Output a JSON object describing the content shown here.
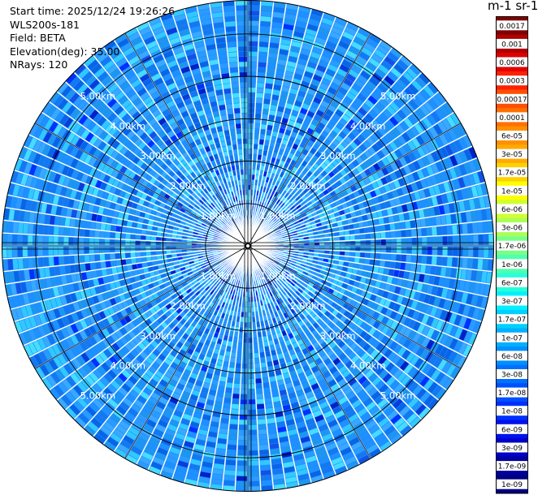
{
  "info": {
    "start_time": "Start time: 2025/12/24 19:26:26",
    "instrument": "WLS200s-181",
    "field": "Field: BETA",
    "elevation": "Elevation(deg): 35.00",
    "nrays": "NRays: 120"
  },
  "unit_label": "m-1 sr-1",
  "chart_data": {
    "type": "heatmap",
    "projection": "polar (PPI)",
    "field": "BETA",
    "elevation_deg": 35.0,
    "n_rays": 120,
    "max_range_km": 5.8,
    "range_rings_km": [
      1,
      2,
      3,
      4,
      5
    ],
    "ring_labels": [
      "1.00km",
      "2.00km",
      "3.00km",
      "4.00km",
      "5.00km"
    ],
    "colorbar_ticks": [
      "0.0017",
      "0.001",
      "0.0006",
      "0.0003",
      "0.00017",
      "0.0001",
      "6e-05",
      "3e-05",
      "1.7e-05",
      "1e-05",
      "6e-06",
      "3e-06",
      "1.7e-06",
      "1e-06",
      "6e-07",
      "3e-07",
      "1.7e-07",
      "1e-07",
      "6e-08",
      "3e-08",
      "1.7e-08",
      "1e-08",
      "6e-09",
      "3e-09",
      "1.7e-09",
      "1e-09"
    ],
    "colorbar_colors": [
      "#800000",
      "#b00000",
      "#e00000",
      "#ff2000",
      "#ff5000",
      "#ff7000",
      "#ff9000",
      "#ffaa00",
      "#ffd000",
      "#ffff00",
      "#d0ff30",
      "#a8ff58",
      "#78ff88",
      "#50ffb0",
      "#28ffd8",
      "#00f0ff",
      "#00d0ff",
      "#00b0ff",
      "#0090ff",
      "#0070ff",
      "#0050ff",
      "#0030ff",
      "#0010f0",
      "#0000c8",
      "#0000a0",
      "#000080"
    ],
    "dominant_values": "mostly 6e-08 to 1e-07 (light blue) with scattered 1e-08 to 3e-08 (dark blue) near the center"
  }
}
